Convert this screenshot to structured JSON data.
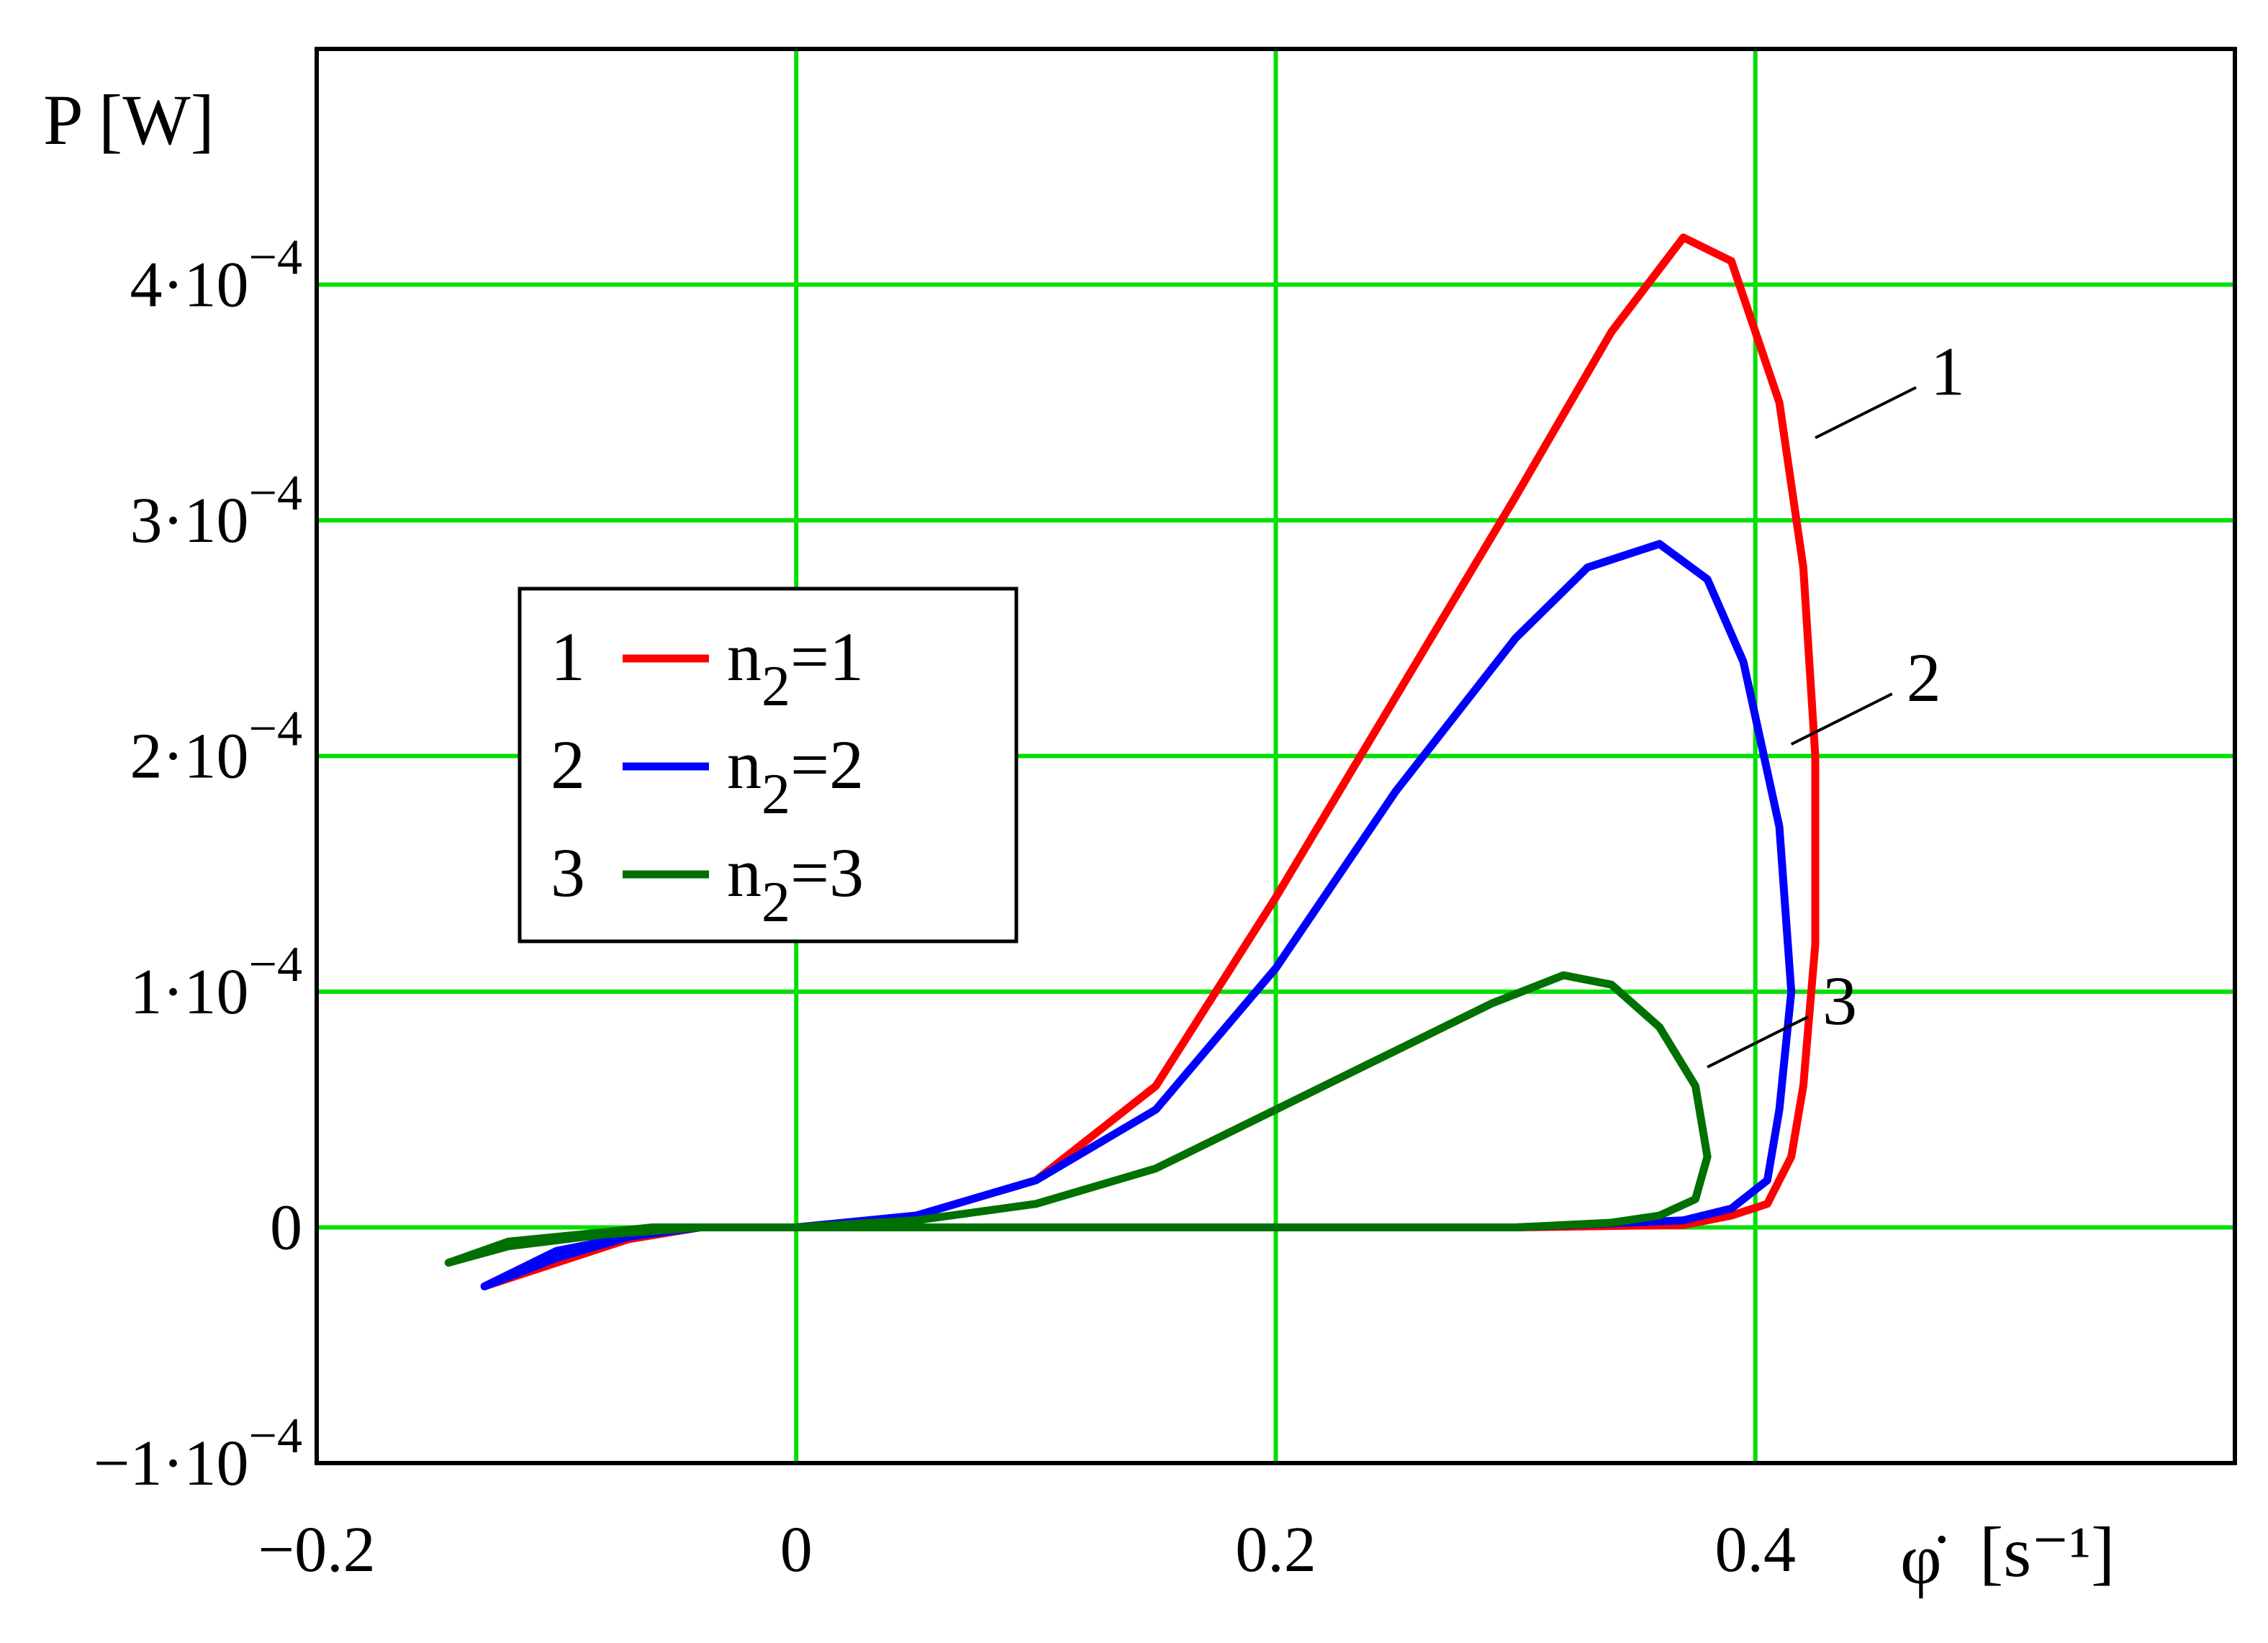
{
  "chart_data": {
    "type": "line",
    "ylabel": "P [W]",
    "xlabel_symbol": "φ̇",
    "xlabel_unit": "[s⁻¹]",
    "xlim": [
      -0.2,
      0.6
    ],
    "ylim": [
      -0.0001,
      0.0005
    ],
    "x_ticks": [
      {
        "value": -0.2,
        "label": "−0.2"
      },
      {
        "value": 0,
        "label": "0"
      },
      {
        "value": 0.2,
        "label": "0.2"
      },
      {
        "value": 0.4,
        "label": "0.4"
      }
    ],
    "y_ticks": [
      {
        "value": -0.0001,
        "base": "−1·10",
        "exp": "−4"
      },
      {
        "value": 0,
        "base": "0",
        "exp": ""
      },
      {
        "value": 0.0001,
        "base": "1·10",
        "exp": "−4"
      },
      {
        "value": 0.0002,
        "base": "2·10",
        "exp": "−4"
      },
      {
        "value": 0.0003,
        "base": "3·10",
        "exp": "−4"
      },
      {
        "value": 0.0004,
        "base": "4·10",
        "exp": "−4"
      }
    ],
    "grid": true,
    "grid_color": "#00e000",
    "legend": {
      "placement": "center-left",
      "entries": [
        {
          "num": "1",
          "label": "n",
          "sub": "2",
          "eq": "=1"
        },
        {
          "num": "2",
          "label": "n",
          "sub": "2",
          "eq": "=2"
        },
        {
          "num": "3",
          "label": "n",
          "sub": "2",
          "eq": "=3"
        }
      ]
    },
    "series": [
      {
        "name": "n2=1",
        "id": "1",
        "color": "#ff0000",
        "x": [
          -0.13,
          -0.1,
          -0.07,
          -0.04,
          0.0,
          0.05,
          0.1,
          0.15,
          0.2,
          0.25,
          0.3,
          0.34,
          0.37,
          0.39,
          0.41,
          0.42,
          0.425,
          0.425,
          0.42,
          0.415,
          0.405,
          0.39,
          0.37,
          0.3,
          0.2,
          0.1,
          0.0,
          -0.05,
          -0.1,
          -0.13
        ],
        "y": [
          -2.5e-05,
          -1.5e-05,
          -5e-06,
          0.0,
          0.0,
          5e-06,
          2e-05,
          6e-05,
          0.00014,
          0.000225,
          0.00031,
          0.00038,
          0.00042,
          0.00041,
          0.00035,
          0.00028,
          0.0002,
          0.00012,
          6e-05,
          3e-05,
          1e-05,
          5e-06,
          1e-06,
          0.0,
          0.0,
          0.0,
          0.0,
          0.0,
          -1e-05,
          -2.5e-05
        ]
      },
      {
        "name": "n2=2",
        "id": "2",
        "color": "#0000ff",
        "x": [
          -0.13,
          -0.1,
          -0.07,
          -0.04,
          0.0,
          0.05,
          0.1,
          0.15,
          0.2,
          0.25,
          0.3,
          0.33,
          0.36,
          0.38,
          0.395,
          0.41,
          0.415,
          0.41,
          0.405,
          0.39,
          0.37,
          0.3,
          0.2,
          0.1,
          0.0,
          -0.05,
          -0.1,
          -0.13
        ],
        "y": [
          -2.5e-05,
          -1.3e-05,
          -4e-06,
          0.0,
          0.0,
          5e-06,
          2e-05,
          5e-05,
          0.00011,
          0.000185,
          0.00025,
          0.00028,
          0.00029,
          0.000275,
          0.00024,
          0.00017,
          0.0001,
          5e-05,
          2e-05,
          8e-06,
          3e-06,
          0.0,
          0.0,
          0.0,
          0.0,
          0.0,
          -1e-05,
          -2.5e-05
        ]
      },
      {
        "name": "n2=3",
        "id": "3",
        "color": "#007000",
        "x": [
          -0.145,
          -0.12,
          -0.08,
          -0.04,
          0.0,
          0.05,
          0.1,
          0.15,
          0.2,
          0.25,
          0.29,
          0.32,
          0.34,
          0.36,
          0.375,
          0.38,
          0.375,
          0.36,
          0.34,
          0.3,
          0.2,
          0.1,
          0.0,
          -0.06,
          -0.12,
          -0.145
        ],
        "y": [
          -1.5e-05,
          -8e-06,
          -3e-06,
          0.0,
          0.0,
          3e-06,
          1e-05,
          2.5e-05,
          5e-05,
          7.5e-05,
          9.5e-05,
          0.000107,
          0.000103,
          8.5e-05,
          6e-05,
          3e-05,
          1.2e-05,
          5e-06,
          2e-06,
          0.0,
          0.0,
          0.0,
          0.0,
          0.0,
          -6e-06,
          -1.5e-05
        ]
      }
    ],
    "annotations": [
      {
        "text": "1",
        "series": "1",
        "leader_from": [
          0.425,
          0.000335
        ]
      },
      {
        "text": "2",
        "series": "2",
        "leader_from": [
          0.415,
          0.000205
        ]
      },
      {
        "text": "3",
        "series": "3",
        "leader_from": [
          0.38,
          6.8e-05
        ]
      }
    ]
  }
}
